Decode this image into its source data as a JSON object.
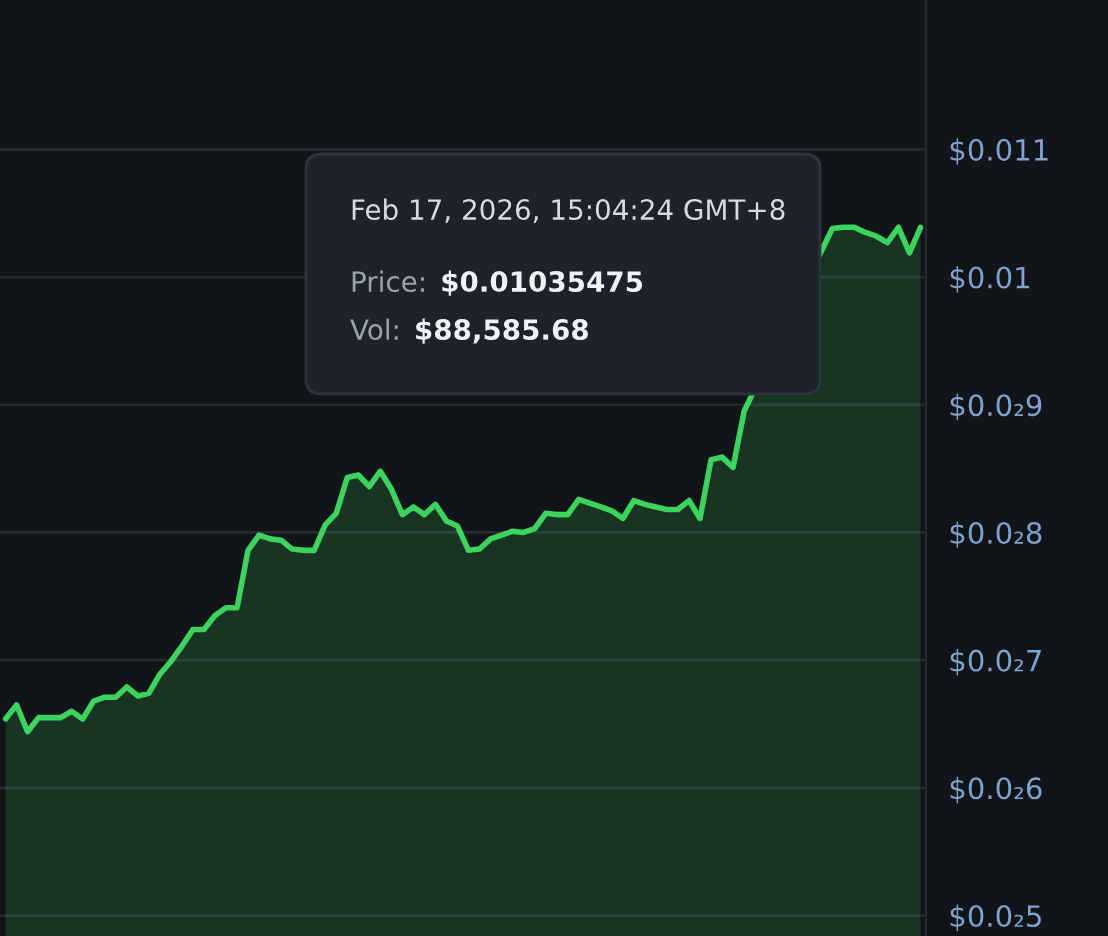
{
  "chart_data": {
    "type": "area",
    "color": "#3cd45f",
    "categories": [
      null,
      null,
      null,
      null,
      null,
      null,
      null,
      null,
      null,
      null,
      null,
      null,
      null,
      null,
      null,
      null,
      null,
      null,
      null,
      null,
      null,
      null,
      null,
      null,
      null,
      null,
      null,
      null,
      null,
      null,
      null,
      null,
      null,
      null,
      null,
      null,
      null,
      null,
      null,
      null,
      null,
      null,
      null,
      null,
      null,
      null,
      null,
      null,
      null,
      null,
      null,
      null,
      null,
      null,
      null,
      null,
      null,
      null,
      null,
      null,
      null,
      null,
      null,
      null,
      null,
      null,
      null,
      null,
      null,
      null,
      null,
      null,
      null,
      null,
      null,
      null,
      null,
      null,
      null,
      null,
      null,
      null,
      null,
      null
    ],
    "values": [
      0.00654,
      0.00665,
      0.00644,
      0.00655,
      0.00655,
      0.00655,
      0.0066,
      0.00654,
      0.00668,
      0.00671,
      0.00671,
      0.00679,
      0.00672,
      0.00674,
      0.00689,
      0.00699,
      0.00711,
      0.00724,
      0.00724,
      0.00735,
      0.00741,
      0.00741,
      0.00786,
      0.00798,
      0.00795,
      0.00794,
      0.00787,
      0.00786,
      0.00786,
      0.00806,
      0.00815,
      0.00843,
      0.00845,
      0.00836,
      0.00848,
      0.00834,
      0.00814,
      0.0082,
      0.00814,
      0.00822,
      0.00809,
      0.00805,
      0.00786,
      0.00787,
      0.00795,
      0.00798,
      0.00801,
      0.008,
      0.00803,
      0.00815,
      0.00814,
      0.00814,
      0.00826,
      0.00823,
      0.0082,
      0.00817,
      0.00811,
      0.00825,
      0.00822,
      0.0082,
      0.00818,
      0.00818,
      0.00825,
      0.00811,
      0.00857,
      0.00859,
      0.00851,
      0.00895,
      null,
      null,
      null,
      null,
      null,
      null,
      null,
      0.01038,
      0.01039,
      0.01039,
      0.01035,
      0.01032,
      0.01027,
      0.01039,
      0.01019,
      0.01039
    ],
    "ylim": [
      0.00484,
      0.01217
    ],
    "yticks": [
      {
        "value": 0.005,
        "label": "$0.0₂5"
      },
      {
        "value": 0.006,
        "label": "$0.0₂6"
      },
      {
        "value": 0.007,
        "label": "$0.0₂7"
      },
      {
        "value": 0.008,
        "label": "$0.0₂8"
      },
      {
        "value": 0.009,
        "label": "$0.0₂9"
      },
      {
        "value": 0.01,
        "label": "$0.01"
      },
      {
        "value": 0.011,
        "label": "$0.011"
      }
    ],
    "grid": "y",
    "tick_labels": "y",
    "annotations": [
      "Feb 17, 2026, 15:04:24 GMT+8",
      "Price: $0.01035475",
      "Vol: $88,585.68"
    ]
  }
}
